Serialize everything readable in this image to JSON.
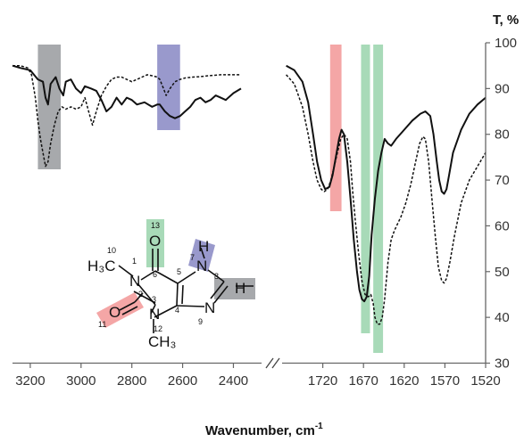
{
  "chart_data": {
    "type": "line",
    "title": "",
    "xlabel": "Wavenumber, cm",
    "xlabel_superscript": "-1",
    "ylabel": "T, %",
    "y_ticks": [
      "100",
      "90",
      "80",
      "70",
      "60",
      "50",
      "40",
      "30"
    ],
    "ylim": [
      30,
      100
    ],
    "axis_break": true,
    "grid": false,
    "legend": "none",
    "panels": [
      {
        "range_cm1": [
          3270,
          2370
        ],
        "x_ticks": [
          "3200",
          "3000",
          "2800",
          "2600",
          "2400"
        ],
        "highlight_bands": [
          {
            "x_range": [
              3170,
              3080
            ],
            "color": "#a7a9ac"
          },
          {
            "x_range": [
              2700,
              2610
            ],
            "color": "#9999cc"
          }
        ],
        "series": [
          {
            "style": "solid",
            "color": "#111111",
            "points": [
              [
                3270,
                95
              ],
              [
                3240,
                94.5
              ],
              [
                3200,
                94
              ],
              [
                3170,
                92
              ],
              [
                3150,
                91.5
              ],
              [
                3140,
                88
              ],
              [
                3130,
                86.5
              ],
              [
                3120,
                91
              ],
              [
                3100,
                92.5
              ],
              [
                3085,
                90
              ],
              [
                3070,
                88.5
              ],
              [
                3060,
                91.5
              ],
              [
                3040,
                92
              ],
              [
                3020,
                90
              ],
              [
                3000,
                89
              ],
              [
                2985,
                90.5
              ],
              [
                2960,
                90
              ],
              [
                2940,
                89.5
              ],
              [
                2920,
                87.5
              ],
              [
                2900,
                85
              ],
              [
                2880,
                86
              ],
              [
                2860,
                88
              ],
              [
                2840,
                86.5
              ],
              [
                2820,
                88
              ],
              [
                2800,
                87.5
              ],
              [
                2780,
                86.5
              ],
              [
                2750,
                87
              ],
              [
                2720,
                86
              ],
              [
                2700,
                86.5
              ],
              [
                2690,
                86.5
              ],
              [
                2670,
                85
              ],
              [
                2650,
                84
              ],
              [
                2630,
                83.5
              ],
              [
                2610,
                84
              ],
              [
                2590,
                85
              ],
              [
                2570,
                86
              ],
              [
                2550,
                87.5
              ],
              [
                2530,
                88
              ],
              [
                2510,
                87
              ],
              [
                2490,
                87.5
              ],
              [
                2470,
                88.5
              ],
              [
                2450,
                88
              ],
              [
                2430,
                87.5
              ],
              [
                2400,
                89
              ],
              [
                2370,
                90
              ]
            ]
          },
          {
            "style": "dashed",
            "color": "#111111",
            "points": [
              [
                3270,
                95
              ],
              [
                3240,
                95
              ],
              [
                3210,
                94.5
              ],
              [
                3195,
                93
              ],
              [
                3180,
                88
              ],
              [
                3170,
                83
              ],
              [
                3160,
                79
              ],
              [
                3150,
                76
              ],
              [
                3140,
                73
              ],
              [
                3130,
                74
              ],
              [
                3120,
                78
              ],
              [
                3105,
                82
              ],
              [
                3090,
                85
              ],
              [
                3075,
                86
              ],
              [
                3060,
                85.5
              ],
              [
                3040,
                86
              ],
              [
                3020,
                85.5
              ],
              [
                3000,
                86
              ],
              [
                2985,
                88
              ],
              [
                2970,
                85
              ],
              [
                2955,
                82
              ],
              [
                2940,
                85
              ],
              [
                2920,
                88.5
              ],
              [
                2900,
                90.5
              ],
              [
                2880,
                92
              ],
              [
                2860,
                92.5
              ],
              [
                2840,
                92.5
              ],
              [
                2820,
                92
              ],
              [
                2800,
                91.5
              ],
              [
                2780,
                92
              ],
              [
                2760,
                92.5
              ],
              [
                2740,
                93
              ],
              [
                2720,
                92.8
              ],
              [
                2700,
                92.5
              ],
              [
                2690,
                92
              ],
              [
                2675,
                90
              ],
              [
                2665,
                88.5
              ],
              [
                2650,
                90
              ],
              [
                2630,
                91.5
              ],
              [
                2610,
                92
              ],
              [
                2590,
                92.3
              ],
              [
                2560,
                92.5
              ],
              [
                2530,
                92.6
              ],
              [
                2500,
                92.8
              ],
              [
                2450,
                93
              ],
              [
                2400,
                93
              ],
              [
                2370,
                93
              ]
            ]
          }
        ]
      },
      {
        "range_cm1": [
          1770,
          1520
        ],
        "x_ticks": [
          "1720",
          "1670",
          "1620",
          "1570",
          "1520"
        ],
        "highlight_bands": [
          {
            "x_range": [
              1711,
              1697
            ],
            "color": "#f4a6a6"
          },
          {
            "x_range": [
              1673,
              1662
            ],
            "color": "#a8dab8"
          },
          {
            "x_range": [
              1658,
              1646
            ],
            "color": "#a8dab8"
          }
        ],
        "series": [
          {
            "style": "solid",
            "color": "#111111",
            "points": [
              [
                1765,
                95
              ],
              [
                1755,
                94
              ],
              [
                1745,
                91.5
              ],
              [
                1738,
                87
              ],
              [
                1732,
                80
              ],
              [
                1727,
                74
              ],
              [
                1722,
                70
              ],
              [
                1717,
                68
              ],
              [
                1712,
                68.5
              ],
              [
                1708,
                71
              ],
              [
                1704,
                75
              ],
              [
                1700,
                79
              ],
              [
                1697,
                81
              ],
              [
                1694,
                80
              ],
              [
                1690,
                74
              ],
              [
                1686,
                66
              ],
              [
                1682,
                57
              ],
              [
                1678,
                50
              ],
              [
                1675,
                46
              ],
              [
                1672,
                44
              ],
              [
                1669,
                43.5
              ],
              [
                1666,
                44.5
              ],
              [
                1663,
                49
              ],
              [
                1660,
                58
              ],
              [
                1656,
                66
              ],
              [
                1652,
                72
              ],
              [
                1648,
                76
              ],
              [
                1644,
                79
              ],
              [
                1640,
                78
              ],
              [
                1636,
                77.5
              ],
              [
                1630,
                79
              ],
              [
                1620,
                81
              ],
              [
                1610,
                83
              ],
              [
                1600,
                84.5
              ],
              [
                1594,
                85
              ],
              [
                1588,
                84
              ],
              [
                1584,
                80
              ],
              [
                1580,
                74
              ],
              [
                1577,
                70
              ],
              [
                1574,
                67.5
              ],
              [
                1571,
                67
              ],
              [
                1568,
                68
              ],
              [
                1565,
                71
              ],
              [
                1560,
                76
              ],
              [
                1550,
                81
              ],
              [
                1540,
                84.5
              ],
              [
                1530,
                86.5
              ],
              [
                1520,
                88
              ]
            ]
          },
          {
            "style": "dashed",
            "color": "#111111",
            "points": [
              [
                1765,
                93
              ],
              [
                1755,
                91
              ],
              [
                1745,
                86
              ],
              [
                1738,
                80
              ],
              [
                1732,
                74
              ],
              [
                1727,
                70
              ],
              [
                1722,
                68
              ],
              [
                1718,
                67.5
              ],
              [
                1714,
                68
              ],
              [
                1710,
                70
              ],
              [
                1706,
                73
              ],
              [
                1702,
                76
              ],
              [
                1698,
                79
              ],
              [
                1694,
                80
              ],
              [
                1690,
                79
              ],
              [
                1686,
                74
              ],
              [
                1683,
                67
              ],
              [
                1680,
                61
              ],
              [
                1676,
                54
              ],
              [
                1672,
                48
              ],
              [
                1668,
                45
              ],
              [
                1664,
                44.5
              ],
              [
                1661,
                45
              ],
              [
                1658,
                43
              ],
              [
                1656,
                40
              ],
              [
                1653,
                38.5
              ],
              [
                1650,
                38.5
              ],
              [
                1647,
                40
              ],
              [
                1644,
                44
              ],
              [
                1640,
                52
              ],
              [
                1636,
                57
              ],
              [
                1632,
                59
              ],
              [
                1628,
                60.5
              ],
              [
                1624,
                62
              ],
              [
                1618,
                65
              ],
              [
                1612,
                69
              ],
              [
                1606,
                74
              ],
              [
                1601,
                78
              ],
              [
                1597,
                79.5
              ],
              [
                1594,
                79
              ],
              [
                1590,
                74
              ],
              [
                1586,
                66
              ],
              [
                1582,
                58
              ],
              [
                1578,
                51
              ],
              [
                1574,
                48
              ],
              [
                1571,
                47.5
              ],
              [
                1568,
                48.5
              ],
              [
                1564,
                52
              ],
              [
                1558,
                58
              ],
              [
                1550,
                65
              ],
              [
                1540,
                70
              ],
              [
                1530,
                73
              ],
              [
                1520,
                76
              ]
            ]
          }
        ]
      }
    ]
  },
  "molecule": {
    "atoms": [
      "O",
      "H",
      "N",
      "H",
      "H₃C",
      "N",
      "C",
      "H",
      "N",
      "O",
      "N",
      "CH₃"
    ],
    "atom_numbers": [
      "13",
      "10",
      "1",
      "6",
      "5",
      "7",
      "8",
      "2",
      "3",
      "4",
      "9",
      "11",
      "12"
    ],
    "highlight_colors": {
      "red": "#f4a6a6",
      "green": "#a8dab8",
      "blue": "#9999cc",
      "gray": "#a7a9ac"
    }
  }
}
